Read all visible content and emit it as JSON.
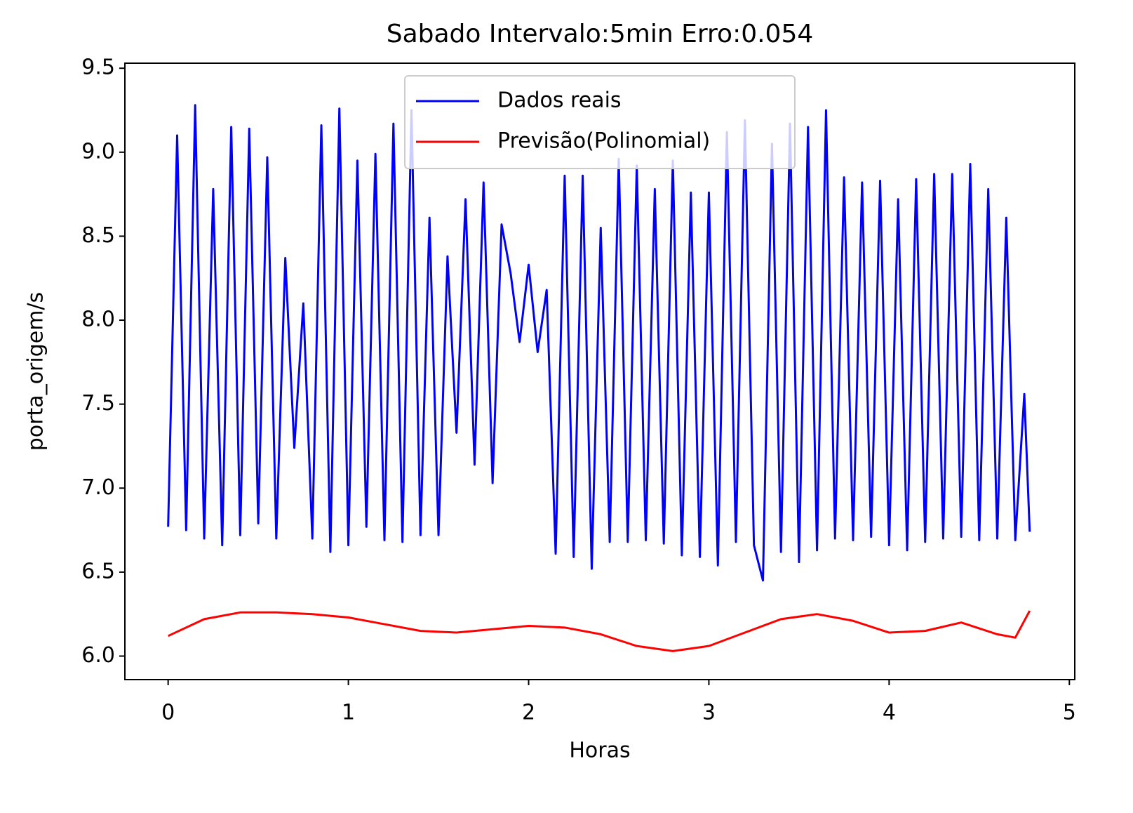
{
  "chart_data": {
    "type": "line",
    "title": "Sabado Intervalo:5min Erro:0.054",
    "xlabel": "Horas",
    "ylabel": "porta_origem/s",
    "xlim": [
      -0.24,
      5.03
    ],
    "ylim": [
      5.86,
      9.53
    ],
    "xticks": [
      0,
      1,
      2,
      3,
      4,
      5
    ],
    "yticks": [
      {
        "value": 6,
        "label": "6.0"
      },
      6.5,
      {
        "value": 7,
        "label": "7.0"
      },
      7.5,
      {
        "value": 8,
        "label": "8.0"
      },
      8.5,
      {
        "value": 9,
        "label": "9.0"
      },
      9.5
    ],
    "legend": "upper center",
    "grid": false,
    "series": [
      {
        "name": "Dados reais",
        "color": "#0000ff",
        "x": [
          0,
          0.05,
          0.1,
          0.15,
          0.2,
          0.25,
          0.3,
          0.35,
          0.4,
          0.45,
          0.5,
          0.55,
          0.6,
          0.65,
          0.7,
          0.75,
          0.8,
          0.85,
          0.9,
          0.95,
          1.0,
          1.05,
          1.1,
          1.15,
          1.2,
          1.25,
          1.3,
          1.35,
          1.4,
          1.45,
          1.5,
          1.55,
          1.6,
          1.65,
          1.7,
          1.75,
          1.8,
          1.85,
          1.9,
          1.95,
          2.0,
          2.05,
          2.1,
          2.15,
          2.2,
          2.25,
          2.3,
          2.35,
          2.4,
          2.45,
          2.5,
          2.55,
          2.6,
          2.65,
          2.7,
          2.75,
          2.8,
          2.85,
          2.9,
          2.95,
          3.0,
          3.05,
          3.1,
          3.15,
          3.2,
          3.25,
          3.3,
          3.35,
          3.4,
          3.45,
          3.5,
          3.55,
          3.6,
          3.65,
          3.7,
          3.75,
          3.8,
          3.85,
          3.9,
          3.95,
          4.0,
          4.05,
          4.1,
          4.15,
          4.2,
          4.25,
          4.3,
          4.35,
          4.4,
          4.45,
          4.5,
          4.55,
          4.6,
          4.65,
          4.7,
          4.75,
          4.78
        ],
        "values": [
          6.77,
          9.1,
          6.75,
          9.28,
          6.7,
          8.78,
          6.66,
          9.15,
          6.72,
          9.14,
          6.79,
          8.97,
          6.7,
          8.37,
          7.24,
          8.1,
          6.7,
          9.16,
          6.62,
          9.26,
          6.66,
          8.95,
          6.77,
          8.99,
          6.69,
          9.17,
          6.68,
          9.25,
          6.72,
          8.61,
          6.72,
          8.38,
          7.33,
          8.72,
          7.14,
          8.82,
          7.03,
          8.57,
          8.28,
          7.87,
          8.33,
          7.81,
          8.18,
          6.61,
          8.86,
          6.59,
          8.86,
          6.52,
          8.55,
          6.68,
          8.96,
          6.68,
          8.92,
          6.69,
          8.78,
          6.67,
          8.95,
          6.6,
          8.76,
          6.59,
          8.76,
          6.54,
          9.12,
          6.68,
          9.19,
          6.66,
          6.45,
          9.05,
          6.62,
          9.17,
          6.56,
          9.15,
          6.63,
          9.25,
          6.7,
          8.85,
          6.69,
          8.82,
          6.71,
          8.83,
          6.66,
          8.72,
          6.63,
          8.84,
          6.68,
          8.87,
          6.7,
          8.87,
          6.71,
          8.93,
          6.69,
          8.78,
          6.7,
          8.61,
          6.69,
          7.56,
          6.74
        ]
      },
      {
        "name": "Previsão(Polinomial)",
        "color": "#ff0000",
        "x": [
          0,
          0.2,
          0.4,
          0.6,
          0.8,
          1.0,
          1.2,
          1.4,
          1.6,
          1.8,
          2.0,
          2.2,
          2.4,
          2.6,
          2.8,
          3.0,
          3.2,
          3.4,
          3.6,
          3.8,
          4.0,
          4.2,
          4.4,
          4.6,
          4.7,
          4.78
        ],
        "values": [
          6.12,
          6.22,
          6.26,
          6.26,
          6.25,
          6.23,
          6.19,
          6.15,
          6.14,
          6.16,
          6.18,
          6.17,
          6.13,
          6.06,
          6.03,
          6.06,
          6.14,
          6.22,
          6.25,
          6.21,
          6.14,
          6.15,
          6.2,
          6.13,
          6.11,
          6.27
        ]
      }
    ]
  }
}
